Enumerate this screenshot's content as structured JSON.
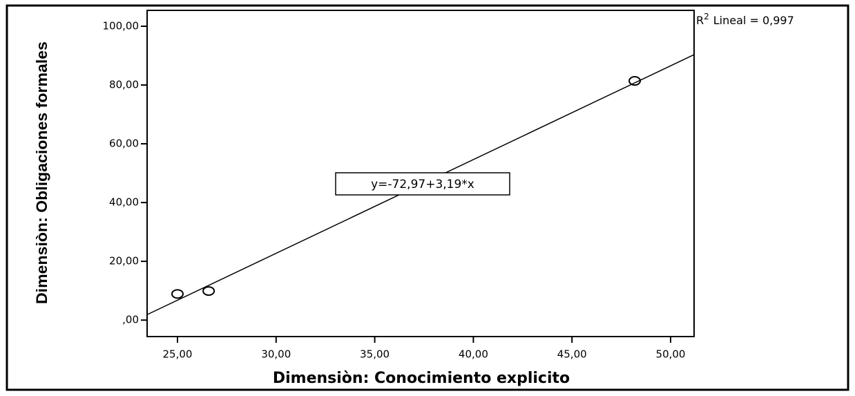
{
  "chart_data": {
    "type": "scatter",
    "x_label": "Dimensiòn: Conocimiento explicito",
    "y_label": "Dimensiòn: Obligaciones formales",
    "x": [
      25.0,
      26.58,
      48.18
    ],
    "values": [
      8.9,
      9.9,
      81.4
    ],
    "color": "#000000",
    "fit": {
      "intercept": -72.97,
      "slope": 3.19,
      "label": "y=-72,97+3,19*x"
    },
    "r2_label": {
      "prefix": "R",
      "sup": "2",
      "text": "Lineal = 0,997"
    },
    "xlim": [
      23.46,
      51.19
    ],
    "ylim": [
      -5.6,
      105.4
    ],
    "xticks": [
      {
        "value": 25,
        "label": "25,00"
      },
      {
        "value": 30,
        "label": "30,00"
      },
      {
        "value": 35,
        "label": "35,00"
      },
      {
        "value": 40,
        "label": "40,00"
      },
      {
        "value": 45,
        "label": "45,00"
      },
      {
        "value": 50,
        "label": "50,00"
      }
    ],
    "yticks": [
      {
        "value": 0,
        "label": ",00"
      },
      {
        "value": 20,
        "label": "20,00"
      },
      {
        "value": 40,
        "label": "40,00"
      },
      {
        "value": 60,
        "label": "60,00"
      },
      {
        "value": 80,
        "label": "80,00"
      },
      {
        "value": 100,
        "label": "100,00"
      }
    ]
  }
}
